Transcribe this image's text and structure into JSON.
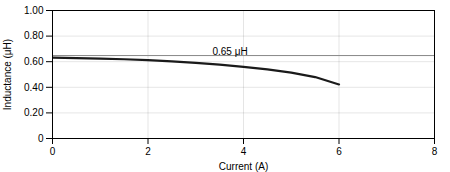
{
  "chart_data": {
    "type": "line",
    "x": [
      0,
      0.5,
      1.0,
      1.5,
      2.0,
      2.5,
      3.0,
      3.5,
      4.0,
      4.5,
      5.0,
      5.5,
      6.0
    ],
    "values": [
      0.632,
      0.628,
      0.624,
      0.619,
      0.612,
      0.603,
      0.591,
      0.577,
      0.56,
      0.54,
      0.515,
      0.48,
      0.422
    ],
    "color": "#1a1a1a",
    "xlabel": "Current (A)",
    "ylabel": "Inductance (μH)",
    "xlim": [
      0,
      8
    ],
    "ylim": [
      0,
      1.0
    ],
    "xticks": [
      0,
      2,
      4,
      6,
      8
    ],
    "yticks": [
      0,
      {
        "value": 0.2,
        "label": "0.20"
      },
      {
        "value": 0.4,
        "label": "0.40"
      },
      {
        "value": 0.6,
        "label": "0.60"
      },
      {
        "value": 0.8,
        "label": "0.80"
      },
      {
        "value": 1.0,
        "label": "1.00"
      }
    ],
    "grid": true,
    "hlines": [
      {
        "y": 0.648,
        "color": "#888888"
      }
    ],
    "annotations": [
      {
        "text": "0.65 μH",
        "x": 3.35,
        "y": 0.655
      }
    ]
  }
}
